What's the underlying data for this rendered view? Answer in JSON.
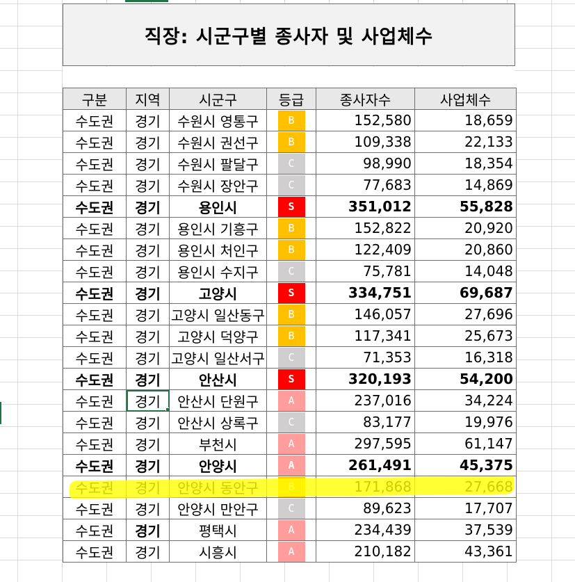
{
  "sheet": {
    "title": "직장: 시군구별 종사자 및 사업체수",
    "columns": [
      "구분",
      "지역",
      "시군구",
      "등급",
      "종사자수",
      "사업체수"
    ],
    "grade_colors": {
      "S": "#ff0000",
      "A": "#ff9d9d",
      "B": "#ffc000",
      "C": "#d0cece"
    },
    "highlight_color": "#ffff00",
    "rows": [
      {
        "gubun": "수도권",
        "region": "경기",
        "city": "수원시 영통구",
        "grade": "B",
        "employees": "152,580",
        "businesses": "18,659",
        "bold": false
      },
      {
        "gubun": "수도권",
        "region": "경기",
        "city": "수원시 권선구",
        "grade": "B",
        "employees": "109,338",
        "businesses": "22,133",
        "bold": false
      },
      {
        "gubun": "수도권",
        "region": "경기",
        "city": "수원시 팔달구",
        "grade": "C",
        "employees": "98,990",
        "businesses": "18,354",
        "bold": false
      },
      {
        "gubun": "수도권",
        "region": "경기",
        "city": "수원시 장안구",
        "grade": "C",
        "employees": "77,683",
        "businesses": "14,869",
        "bold": false
      },
      {
        "gubun": "수도권",
        "region": "경기",
        "city": "용인시",
        "grade": "S",
        "employees": "351,012",
        "businesses": "55,828",
        "bold": true
      },
      {
        "gubun": "수도권",
        "region": "경기",
        "city": "용인시 기흥구",
        "grade": "B",
        "employees": "152,822",
        "businesses": "20,920",
        "bold": false
      },
      {
        "gubun": "수도권",
        "region": "경기",
        "city": "용인시 처인구",
        "grade": "B",
        "employees": "122,409",
        "businesses": "20,860",
        "bold": false
      },
      {
        "gubun": "수도권",
        "region": "경기",
        "city": "용인시 수지구",
        "grade": "C",
        "employees": "75,781",
        "businesses": "14,048",
        "bold": false
      },
      {
        "gubun": "수도권",
        "region": "경기",
        "city": "고양시",
        "grade": "S",
        "employees": "334,751",
        "businesses": "69,687",
        "bold": true
      },
      {
        "gubun": "수도권",
        "region": "경기",
        "city": "고양시 일산동구",
        "grade": "B",
        "employees": "146,057",
        "businesses": "27,696",
        "bold": false
      },
      {
        "gubun": "수도권",
        "region": "경기",
        "city": "고양시 덕양구",
        "grade": "B",
        "employees": "117,341",
        "businesses": "25,673",
        "bold": false
      },
      {
        "gubun": "수도권",
        "region": "경기",
        "city": "고양시 일산서구",
        "grade": "C",
        "employees": "71,353",
        "businesses": "16,318",
        "bold": false
      },
      {
        "gubun": "수도권",
        "region": "경기",
        "city": "안산시",
        "grade": "S",
        "employees": "320,193",
        "businesses": "54,200",
        "bold": true
      },
      {
        "gubun": "수도권",
        "region": "경기",
        "city": "안산시 단원구",
        "grade": "A",
        "employees": "237,016",
        "businesses": "34,224",
        "bold": false,
        "active": true
      },
      {
        "gubun": "수도권",
        "region": "경기",
        "city": "안산시 상록구",
        "grade": "C",
        "employees": "83,177",
        "businesses": "19,976",
        "bold": false
      },
      {
        "gubun": "수도권",
        "region": "경기",
        "city": "부천시",
        "grade": "A",
        "employees": "297,595",
        "businesses": "61,147",
        "bold": false
      },
      {
        "gubun": "수도권",
        "region": "경기",
        "city": "안양시",
        "grade": "A",
        "employees": "261,491",
        "businesses": "45,375",
        "bold": true
      },
      {
        "gubun": "수도권",
        "region": "경기",
        "city": "안양시 동안구",
        "grade": "B",
        "employees": "171,868",
        "businesses": "27,668",
        "bold": false,
        "highlighted": true
      },
      {
        "gubun": "수도권",
        "region": "경기",
        "city": "안양시 만안구",
        "grade": "C",
        "employees": "89,623",
        "businesses": "17,707",
        "bold": false
      },
      {
        "gubun": "수도권",
        "region": "경기",
        "city": "평택시",
        "grade": "A",
        "employees": "234,439",
        "businesses": "37,539",
        "bold": false,
        "region_bold": true
      },
      {
        "gubun": "수도권",
        "region": "경기",
        "city": "시흥시",
        "grade": "A",
        "employees": "210,182",
        "businesses": "43,361",
        "bold": false
      }
    ]
  }
}
